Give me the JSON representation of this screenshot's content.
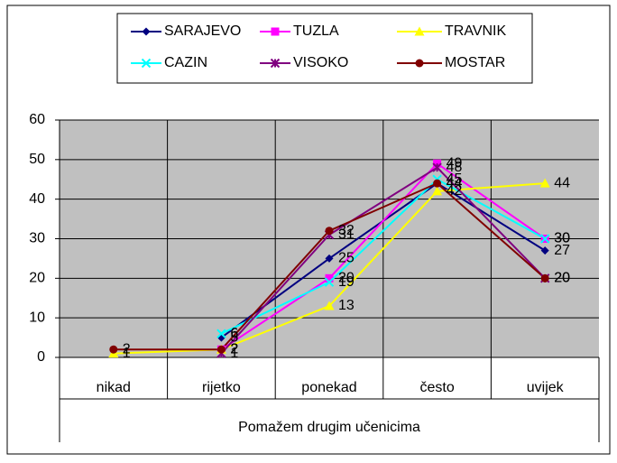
{
  "chart_data": {
    "type": "line",
    "x_axis_title": "Pomažem drugim učenicima",
    "categories": [
      "nikad",
      "rijetko",
      "ponekad",
      "često",
      "uvijek"
    ],
    "series": [
      {
        "name": "SARAJEVO",
        "color": "#000080",
        "values": [
          null,
          5,
          25,
          44,
          27
        ]
      },
      {
        "name": "TUZLA",
        "color": "#ff00ff",
        "values": [
          null,
          2,
          20,
          49,
          30
        ]
      },
      {
        "name": "TRAVNIK",
        "color": "#ffff00",
        "values": [
          1,
          2,
          13,
          42,
          44
        ]
      },
      {
        "name": "CAZIN",
        "color": "#00ffff",
        "values": [
          null,
          6,
          19,
          45,
          30
        ]
      },
      {
        "name": "VISOKO",
        "color": "#800080",
        "values": [
          null,
          1,
          31,
          48,
          20
        ]
      },
      {
        "name": "MOSTAR",
        "color": "#800000",
        "values": [
          2,
          2,
          32,
          44,
          20
        ]
      }
    ],
    "ylim": [
      0,
      60
    ],
    "yticks": [
      0,
      10,
      20,
      30,
      40,
      50,
      60
    ],
    "grid": true,
    "legend": "top"
  }
}
